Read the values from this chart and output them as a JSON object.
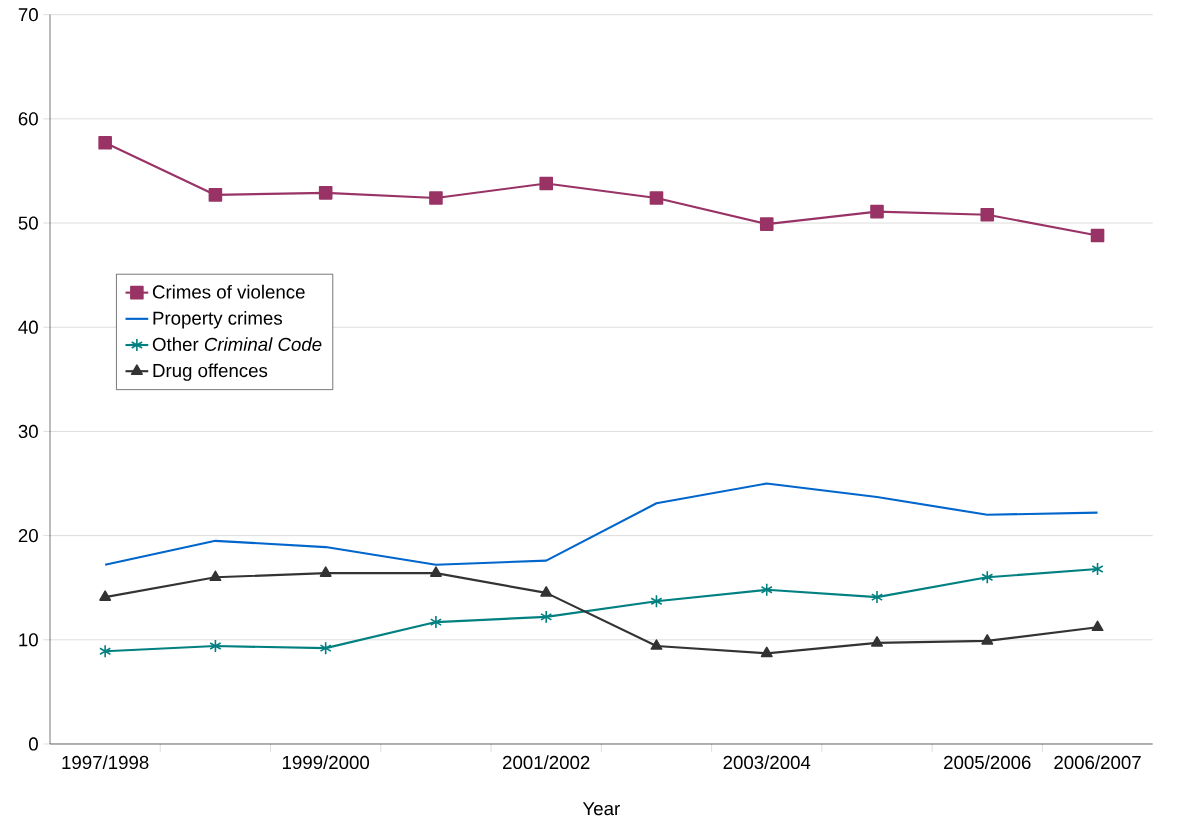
{
  "chart_data": {
    "type": "line",
    "xlabel": "Year",
    "categories": [
      "1997/1998",
      null,
      "1999/2000",
      null,
      "2001/2002",
      null,
      "2003/2004",
      null,
      "2005/2006",
      "2006/2007"
    ],
    "series": [
      {
        "name": "Crimes of violence",
        "color": "#993366",
        "marker": "square",
        "values": [
          57.7,
          52.7,
          52.9,
          52.4,
          53.8,
          52.4,
          49.9,
          51.1,
          50.8,
          48.8
        ]
      },
      {
        "name": "Property crimes",
        "color": "#0066cc",
        "marker": "none",
        "values": [
          17.2,
          19.5,
          18.9,
          17.2,
          17.6,
          23.1,
          25.0,
          23.7,
          22.0,
          22.2
        ]
      },
      {
        "name": "Other *Criminal Code*",
        "color": "#008080",
        "marker": "cross",
        "values": [
          8.9,
          9.4,
          9.2,
          11.7,
          12.2,
          13.7,
          14.8,
          14.1,
          16.0,
          16.8
        ]
      },
      {
        "name": "Drug offences",
        "color": "#333333",
        "marker": "triangle",
        "values": [
          14.1,
          16.0,
          16.4,
          16.4,
          14.5,
          9.4,
          8.7,
          9.7,
          9.9,
          11.2
        ]
      }
    ],
    "ylim": [
      0,
      70
    ],
    "yticks": [
      0,
      10,
      20,
      30,
      40,
      50,
      60,
      70
    ],
    "grid": "y",
    "legend": "left",
    "line_style": "solid"
  }
}
